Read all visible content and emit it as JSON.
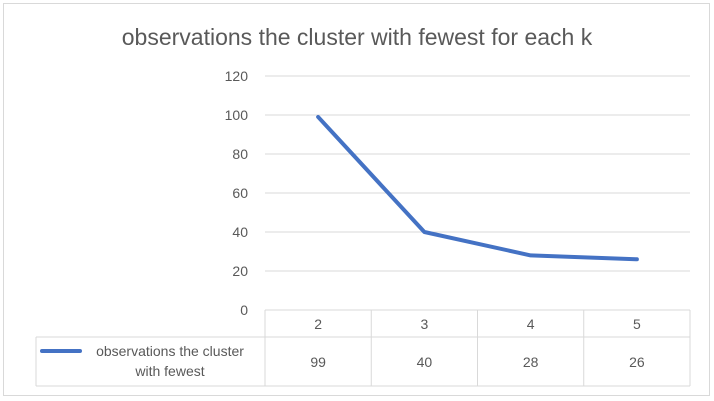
{
  "chart_data": {
    "type": "line",
    "title": "observations the cluster with fewest for each k",
    "categories": [
      "2",
      "3",
      "4",
      "5"
    ],
    "series": [
      {
        "name": "observations the cluster with fewest",
        "legend_lines": [
          "observations the cluster",
          "with fewest"
        ],
        "values": [
          99,
          40,
          28,
          26
        ],
        "color": "#4472c4"
      }
    ],
    "y_ticks": [
      "0",
      "20",
      "40",
      "60",
      "80",
      "100",
      "120"
    ],
    "ylim": [
      0,
      120
    ],
    "grid": true,
    "legend_placement": "data-table-left",
    "data_table": true
  }
}
